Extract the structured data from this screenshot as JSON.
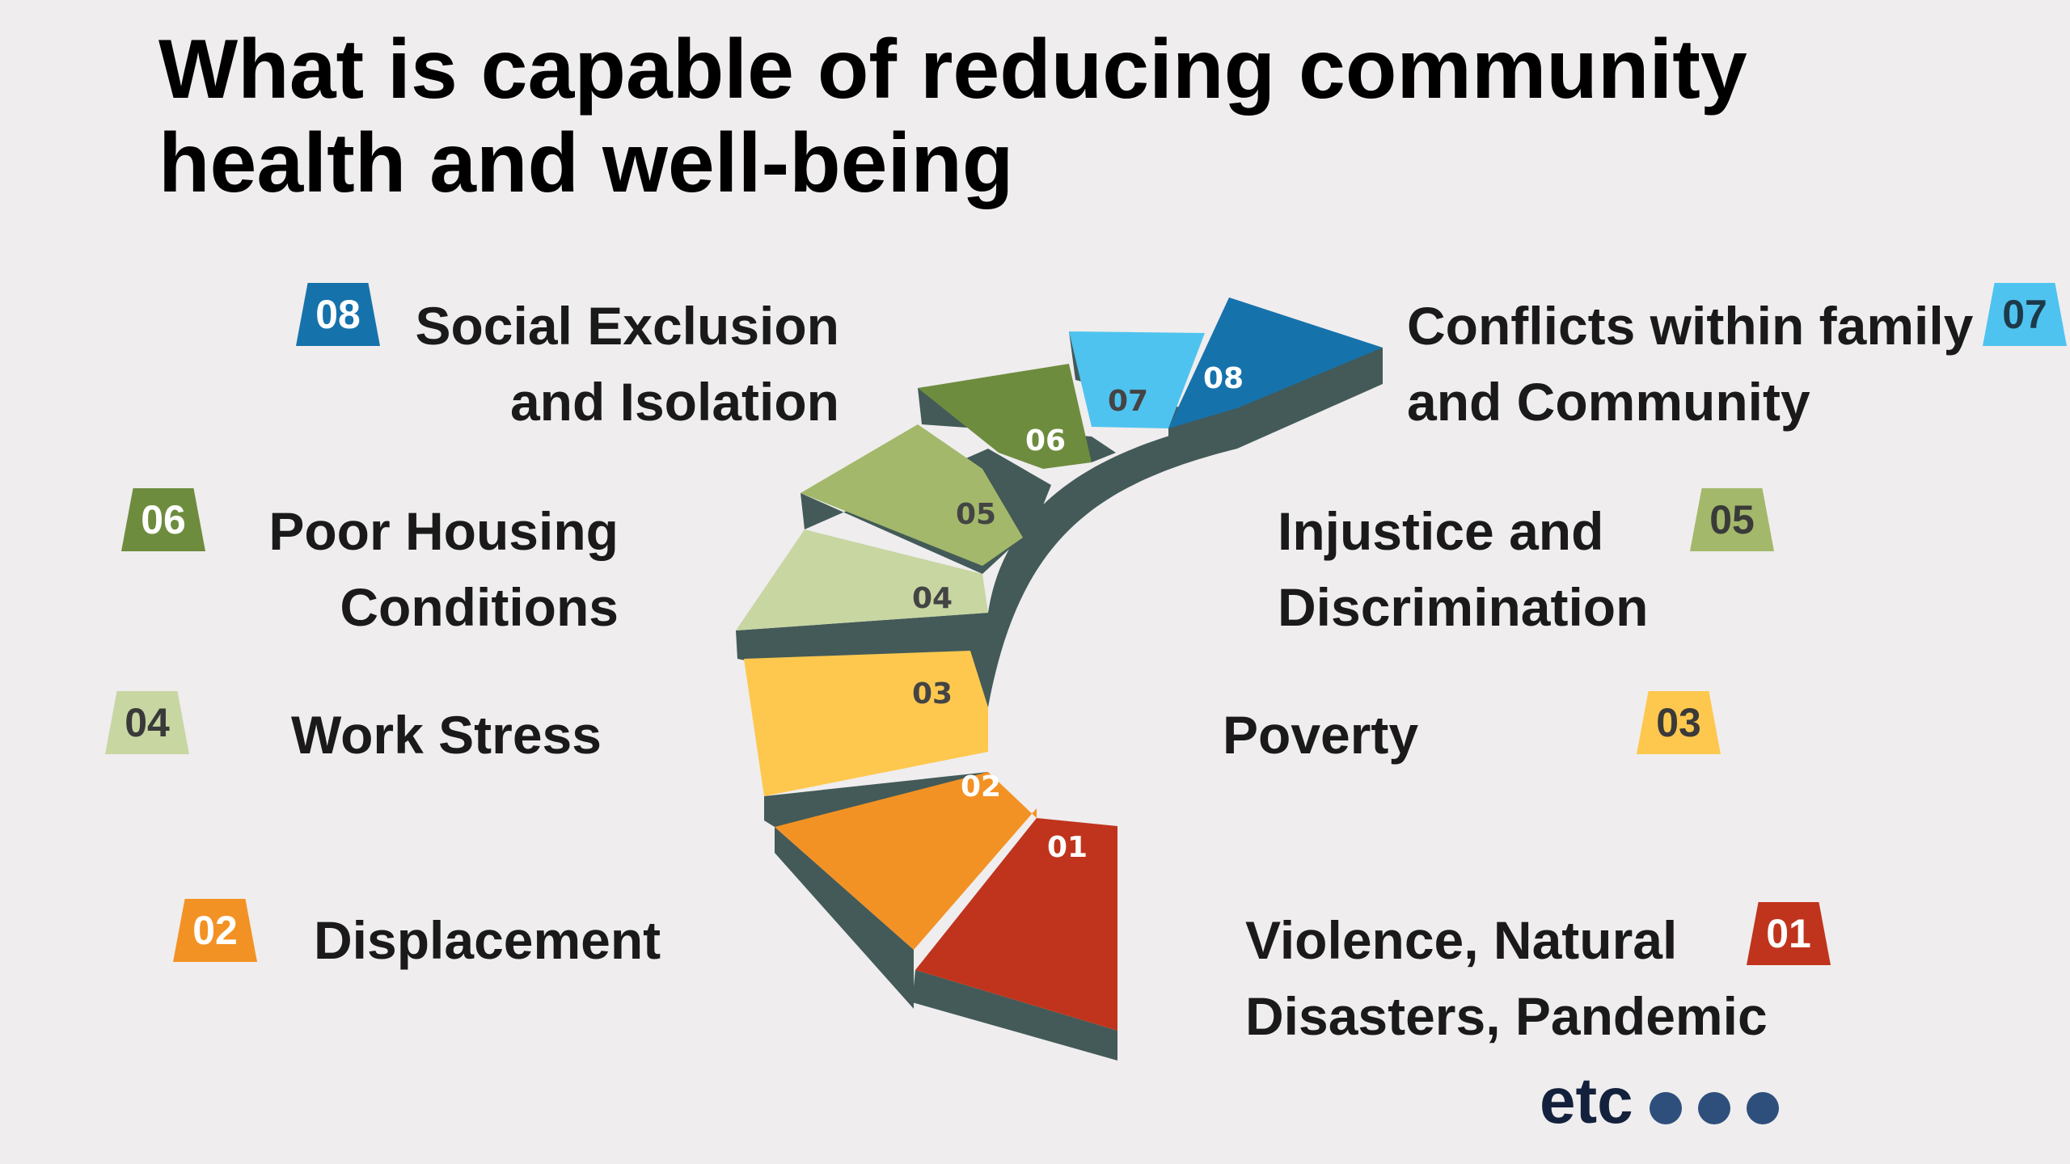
{
  "title": {
    "line1": "What is capable of reducing community",
    "line2": "health and well-being"
  },
  "factors": [
    {
      "num": "01",
      "line1": "Violence, Natural",
      "line2": "Disasters, Pandemic",
      "color": "#c0341d"
    },
    {
      "num": "02",
      "line1": "Displacement",
      "line2": "",
      "color": "#f39224"
    },
    {
      "num": "03",
      "line1": "Poverty",
      "line2": "",
      "color": "#fec84e"
    },
    {
      "num": "04",
      "line1": "Work Stress",
      "line2": "",
      "color": "#c8d6a2"
    },
    {
      "num": "05",
      "line1": "Injustice and",
      "line2": "Discrimination",
      "color": "#a3b86a"
    },
    {
      "num": "06",
      "line1": "Poor Housing",
      "line2": "Conditions",
      "color": "#6e8c3e"
    },
    {
      "num": "07",
      "line1": "Conflicts within family",
      "line2": "and Community",
      "color": "#4fc3ef"
    },
    {
      "num": "08",
      "line1": "Social Exclusion",
      "line2": "and Isolation",
      "color": "#1672ab"
    }
  ],
  "stair_side_color": "#435a58",
  "logo": {
    "text": "etc",
    "dots": 3,
    "dot_color": "#2e4f7c"
  }
}
